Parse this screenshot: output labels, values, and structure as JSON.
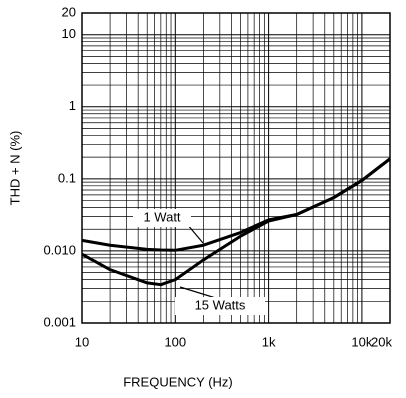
{
  "chart_data": {
    "type": "line",
    "x_label": "FREQUENCY (Hz)",
    "y_label": "THD + N (%)",
    "x": [
      10,
      20,
      50,
      70,
      100,
      200,
      500,
      1000,
      2000,
      5000,
      10000,
      20000
    ],
    "series": [
      {
        "name": "1 Watt",
        "color": "#000000",
        "values": [
          0.014,
          0.012,
          0.0105,
          0.0103,
          0.0102,
          0.012,
          0.018,
          0.027,
          0.032,
          0.055,
          0.095,
          0.19
        ]
      },
      {
        "name": "15 Watts",
        "color": "#000000",
        "values": [
          0.009,
          0.0055,
          0.0036,
          0.0034,
          0.004,
          0.0075,
          0.016,
          0.026,
          0.032,
          0.055,
          0.095,
          0.19
        ]
      }
    ],
    "xlim": [
      10,
      20000
    ],
    "ylim": [
      0.001,
      20
    ],
    "xticks": [
      10,
      100,
      {
        "value": 1000,
        "label": "1k"
      },
      {
        "value": 10000,
        "label": "10k"
      },
      {
        "value": 20000,
        "label": "20k"
      }
    ],
    "yticks": [
      0.001,
      {
        "value": 0.01,
        "label": "0.010"
      },
      0.1,
      1,
      10,
      20
    ],
    "x_log": true,
    "y_log": true,
    "grid": true
  }
}
